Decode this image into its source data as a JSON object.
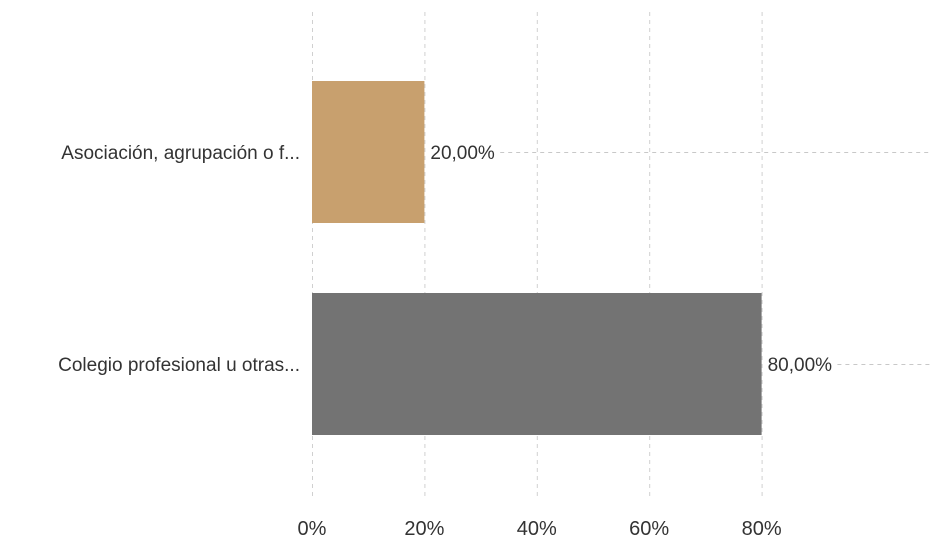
{
  "chart_data": {
    "type": "bar",
    "orientation": "horizontal",
    "categories": [
      "Asociación, agrupación o f...",
      "Colegio profesional u otras..."
    ],
    "values": [
      20,
      80
    ],
    "value_labels": [
      "20,00%",
      "80,00%"
    ],
    "colors": [
      "#c8a06e",
      "#737373"
    ],
    "xlim": [
      0,
      100
    ],
    "x_ticks": [
      0,
      20,
      40,
      60,
      80
    ],
    "x_tick_labels": [
      "0%",
      "20%",
      "40%",
      "60%",
      "80%"
    ],
    "grid": true,
    "grid_style": "dashed"
  }
}
